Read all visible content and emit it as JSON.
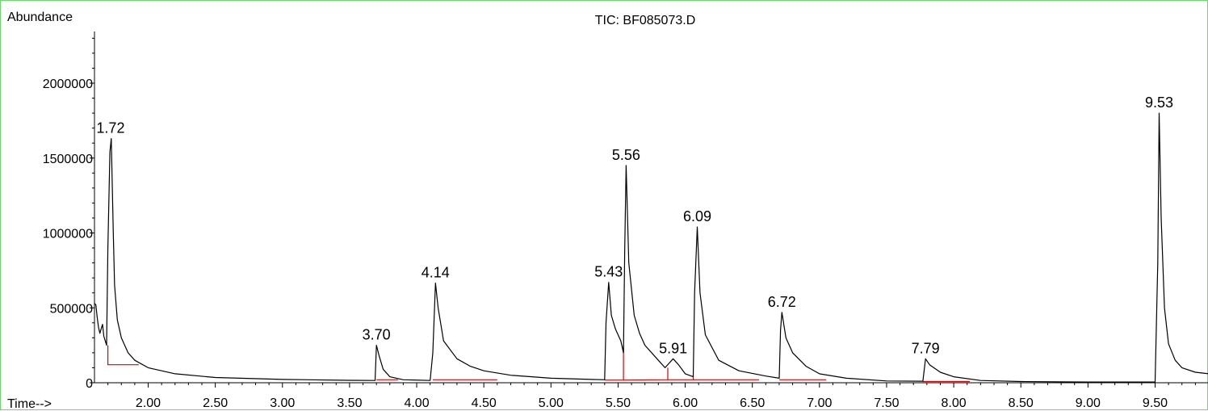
{
  "chart_data": {
    "type": "line",
    "title": "TIC: BF085073.D",
    "ylabel": "Abundance",
    "xlabel": "Time-->",
    "xlim": [
      1.6,
      9.9
    ],
    "ylim": [
      0,
      2000000
    ],
    "xticks": [
      2.0,
      2.5,
      3.0,
      3.5,
      4.0,
      4.5,
      5.0,
      5.5,
      6.0,
      6.5,
      7.0,
      7.5,
      8.0,
      8.5,
      9.0,
      9.5
    ],
    "xtick_labels": [
      "2.00",
      "2.50",
      "3.00",
      "3.50",
      "4.00",
      "4.50",
      "5.00",
      "5.50",
      "6.00",
      "6.50",
      "7.00",
      "7.50",
      "8.00",
      "8.50",
      "9.00",
      "9.50"
    ],
    "yticks": [
      0,
      500000,
      1000000,
      1500000,
      2000000
    ],
    "ytick_labels": [
      "0",
      "500000",
      "1000000",
      "1500000",
      "2000000"
    ],
    "grid": false,
    "peaks": [
      {
        "label": "1.72",
        "x": 1.72,
        "y": 1630000
      },
      {
        "label": "3.70",
        "x": 3.7,
        "y": 250000
      },
      {
        "label": "4.14",
        "x": 4.14,
        "y": 665000
      },
      {
        "label": "5.43",
        "x": 5.43,
        "y": 670000
      },
      {
        "label": "5.56",
        "x": 5.56,
        "y": 1450000
      },
      {
        "label": "5.91",
        "x": 5.91,
        "y": 160000
      },
      {
        "label": "6.09",
        "x": 6.09,
        "y": 1040000
      },
      {
        "label": "6.72",
        "x": 6.72,
        "y": 470000
      },
      {
        "label": "7.79",
        "x": 7.79,
        "y": 160000
      },
      {
        "label": "9.53",
        "x": 9.53,
        "y": 1800000
      }
    ],
    "series": [
      {
        "color": "#000000",
        "points": [
          [
            1.6,
            530000
          ],
          [
            1.61,
            520000
          ],
          [
            1.62,
            440000
          ],
          [
            1.63,
            370000
          ],
          [
            1.64,
            330000
          ],
          [
            1.65,
            360000
          ],
          [
            1.66,
            390000
          ],
          [
            1.67,
            310000
          ],
          [
            1.69,
            250000
          ],
          [
            1.7,
            900000
          ],
          [
            1.715,
            1540000
          ],
          [
            1.725,
            1630000
          ],
          [
            1.74,
            1000000
          ],
          [
            1.75,
            650000
          ],
          [
            1.77,
            420000
          ],
          [
            1.8,
            300000
          ],
          [
            1.85,
            200000
          ],
          [
            1.9,
            150000
          ],
          [
            2.0,
            100000
          ],
          [
            2.2,
            60000
          ],
          [
            2.5,
            35000
          ],
          [
            3.0,
            22000
          ],
          [
            3.5,
            16000
          ],
          [
            3.69,
            15000
          ],
          [
            3.7,
            250000
          ],
          [
            3.72,
            180000
          ],
          [
            3.75,
            90000
          ],
          [
            3.8,
            40000
          ],
          [
            3.9,
            20000
          ],
          [
            4.1,
            15000
          ],
          [
            4.12,
            200000
          ],
          [
            4.14,
            665000
          ],
          [
            4.16,
            500000
          ],
          [
            4.2,
            280000
          ],
          [
            4.3,
            160000
          ],
          [
            4.4,
            110000
          ],
          [
            4.5,
            80000
          ],
          [
            4.7,
            50000
          ],
          [
            5.0,
            30000
          ],
          [
            5.3,
            22000
          ],
          [
            5.4,
            20000
          ],
          [
            5.41,
            400000
          ],
          [
            5.43,
            670000
          ],
          [
            5.45,
            450000
          ],
          [
            5.48,
            360000
          ],
          [
            5.52,
            280000
          ],
          [
            5.54,
            200000
          ],
          [
            5.55,
            900000
          ],
          [
            5.56,
            1450000
          ],
          [
            5.58,
            800000
          ],
          [
            5.62,
            450000
          ],
          [
            5.66,
            330000
          ],
          [
            5.7,
            250000
          ],
          [
            5.8,
            150000
          ],
          [
            5.85,
            100000
          ],
          [
            5.88,
            130000
          ],
          [
            5.91,
            160000
          ],
          [
            5.95,
            120000
          ],
          [
            6.0,
            60000
          ],
          [
            6.06,
            40000
          ],
          [
            6.07,
            600000
          ],
          [
            6.09,
            1040000
          ],
          [
            6.11,
            600000
          ],
          [
            6.15,
            320000
          ],
          [
            6.25,
            150000
          ],
          [
            6.4,
            80000
          ],
          [
            6.6,
            45000
          ],
          [
            6.7,
            30000
          ],
          [
            6.71,
            350000
          ],
          [
            6.72,
            470000
          ],
          [
            6.75,
            300000
          ],
          [
            6.8,
            200000
          ],
          [
            6.9,
            110000
          ],
          [
            7.0,
            60000
          ],
          [
            7.2,
            30000
          ],
          [
            7.5,
            12000
          ],
          [
            7.77,
            10000
          ],
          [
            7.79,
            160000
          ],
          [
            7.82,
            120000
          ],
          [
            7.9,
            70000
          ],
          [
            8.0,
            40000
          ],
          [
            8.2,
            15000
          ],
          [
            8.5,
            8000
          ],
          [
            9.0,
            5000
          ],
          [
            9.5,
            5000
          ],
          [
            9.52,
            800000
          ],
          [
            9.53,
            1800000
          ],
          [
            9.545,
            1100000
          ],
          [
            9.57,
            500000
          ],
          [
            9.6,
            260000
          ],
          [
            9.65,
            150000
          ],
          [
            9.7,
            100000
          ],
          [
            9.8,
            70000
          ],
          [
            9.9,
            60000
          ]
        ]
      }
    ],
    "integration_baselines": [
      [
        [
          1.7,
          250000
        ],
        [
          1.7,
          120000
        ],
        [
          1.93,
          120000
        ]
      ],
      [
        [
          3.7,
          20000
        ],
        [
          3.86,
          20000
        ]
      ],
      [
        [
          4.12,
          20000
        ],
        [
          4.6,
          20000
        ]
      ],
      [
        [
          5.4,
          18000
        ],
        [
          5.54,
          18000
        ],
        [
          5.54,
          250000
        ]
      ],
      [
        [
          5.54,
          18000
        ],
        [
          5.87,
          20000
        ],
        [
          5.87,
          100000
        ]
      ],
      [
        [
          5.87,
          20000
        ],
        [
          6.06,
          20000
        ],
        [
          6.06,
          40000
        ]
      ],
      [
        [
          6.06,
          20000
        ],
        [
          6.55,
          20000
        ]
      ],
      [
        [
          6.7,
          20000
        ],
        [
          7.05,
          20000
        ]
      ],
      [
        [
          7.77,
          8000
        ],
        [
          8.12,
          8000
        ]
      ]
    ]
  }
}
